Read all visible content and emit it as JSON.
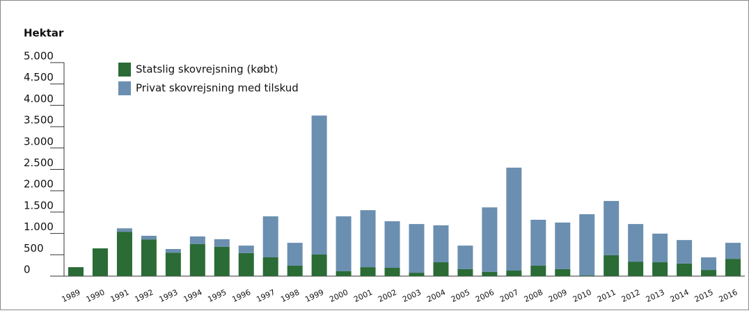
{
  "chart_data": {
    "type": "stacked_bar",
    "y_label": "Hektar",
    "categories": [
      "1989",
      "1990",
      "1991",
      "1992",
      "1993",
      "1994",
      "1995",
      "1996",
      "1997",
      "1998",
      "1999",
      "2000",
      "2001",
      "2002",
      "2003",
      "2004",
      "2005",
      "2006",
      "2007",
      "2008",
      "2009",
      "2010",
      "2011",
      "2012",
      "2013",
      "2014",
      "2015",
      "2016"
    ],
    "series": [
      {
        "name": "Statslig skovrejsning (købt)",
        "color": "#2a6b36",
        "values": [
          210,
          650,
          1040,
          860,
          550,
          750,
          685,
          540,
          440,
          245,
          505,
          115,
          210,
          195,
          80,
          325,
          165,
          100,
          130,
          245,
          165,
          15,
          490,
          340,
          325,
          295,
          145,
          405
        ]
      },
      {
        "name": "Privat skovrejsning med tilskud",
        "color": "#6b8fb0",
        "values": [
          0,
          0,
          80,
          85,
          85,
          180,
          180,
          175,
          960,
          535,
          3255,
          1285,
          1335,
          1090,
          1140,
          865,
          550,
          1510,
          2410,
          1075,
          1090,
          1435,
          1270,
          880,
          670,
          550,
          295,
          375
        ]
      }
    ],
    "ylim": [
      0,
      5000
    ],
    "yticks": [
      0,
      500,
      {
        "value": 1000,
        "label": "1.000"
      },
      {
        "value": 1500,
        "label": "1.500"
      },
      {
        "value": 2000,
        "label": "2.000"
      },
      {
        "value": 2500,
        "label": "2.500"
      },
      {
        "value": 3000,
        "label": "3.000"
      },
      {
        "value": 3500,
        "label": "3.500"
      },
      {
        "value": 4000,
        "label": "4.000"
      },
      {
        "value": 4500,
        "label": "4.500"
      },
      {
        "value": 5000,
        "label": "5.000"
      }
    ]
  }
}
